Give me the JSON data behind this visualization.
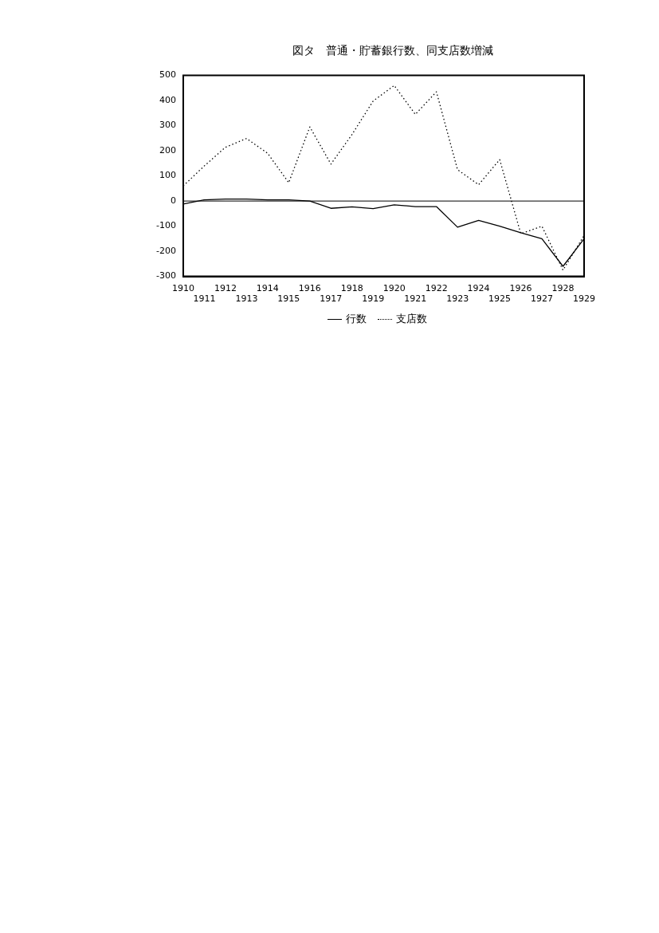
{
  "chart_data": {
    "type": "line",
    "title": "図タ　普通・貯蓄銀行数、同支店数増減",
    "categories": [
      "1910",
      "1911",
      "1912",
      "1913",
      "1914",
      "1915",
      "1916",
      "1917",
      "1918",
      "1919",
      "1920",
      "1921",
      "1922",
      "1923",
      "1924",
      "1925",
      "1926",
      "1927",
      "1928",
      "1929"
    ],
    "series": [
      {
        "name": "行数",
        "color": "#000000",
        "line_style": "solid",
        "values": [
          -12,
          5,
          8,
          8,
          5,
          5,
          0,
          -29,
          -23,
          -30,
          -15,
          -22,
          -22,
          -104,
          -77,
          -100,
          -126,
          -150,
          -260,
          -150
        ]
      },
      {
        "name": "支店数",
        "color": "#000000",
        "line_style": "dotted",
        "values": [
          60,
          140,
          214,
          249,
          190,
          73,
          295,
          147,
          265,
          398,
          460,
          345,
          435,
          125,
          65,
          165,
          -130,
          -100,
          -275,
          -137
        ]
      }
    ],
    "ylim": [
      -300,
      500
    ],
    "yticks": [
      -300,
      -200,
      -100,
      0,
      100,
      200,
      300,
      400,
      500
    ],
    "ref_lines": [
      {
        "axis": "y",
        "value": 0,
        "color": "#000000"
      }
    ],
    "grid": false,
    "legend": "bottom",
    "marker": "none"
  }
}
